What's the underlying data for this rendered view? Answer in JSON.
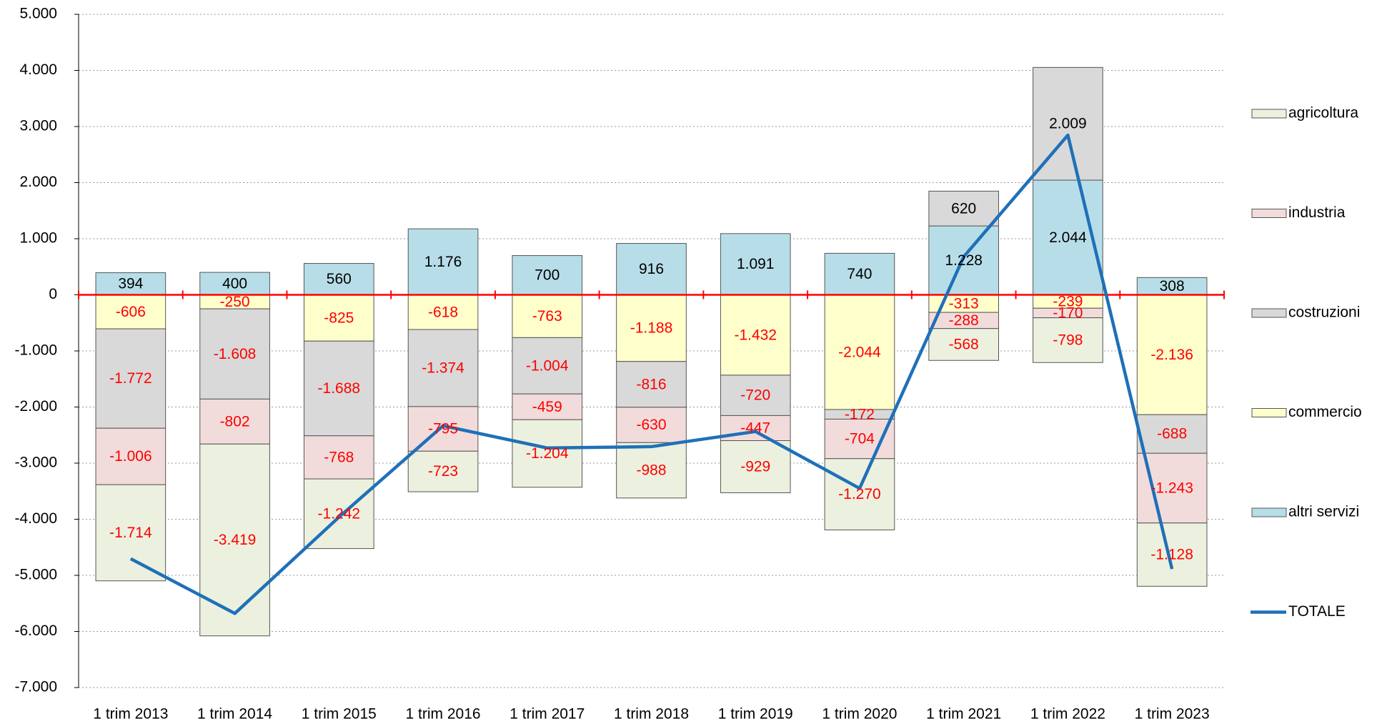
{
  "chart_data": {
    "type": "stacked_bar_line",
    "categories": [
      "1 trim 2013",
      "1 trim 2014",
      "1 trim 2015",
      "1 trim 2016",
      "1 trim 2017",
      "1 trim 2018",
      "1 trim 2019",
      "1 trim 2020",
      "1 trim 2021",
      "1 trim 2022",
      "1 trim 2023"
    ],
    "series": [
      {
        "name": "agricoltura",
        "color": "#ebf1de",
        "values": [
          -1714,
          -3419,
          -1242,
          -723,
          -1204,
          -988,
          -929,
          -1270,
          -568,
          -798,
          -1128
        ],
        "value_labels": [
          "-1.714",
          "-3.419",
          "-1.242",
          "-723",
          "-1.204",
          "-988",
          "-929",
          "-1.270",
          "-568",
          "-798",
          "-1.128"
        ]
      },
      {
        "name": "industria",
        "color": "#f2dcdb",
        "values": [
          -1006,
          -802,
          -768,
          -795,
          -459,
          -630,
          -447,
          -704,
          -288,
          -170,
          -1243
        ],
        "value_labels": [
          "-1.006",
          "-802",
          "-768",
          "-795",
          "-459",
          "-630",
          "-447",
          "-704",
          "-288",
          "-170",
          "-1.243"
        ]
      },
      {
        "name": "costruzioni",
        "color": "#d9d9d9",
        "values": [
          -1772,
          -1608,
          -1688,
          -1374,
          -1004,
          -816,
          -720,
          -172,
          620,
          2009,
          -688
        ],
        "value_labels": [
          "-1.772",
          "-1.608",
          "-1.688",
          "-1.374",
          "-1.004",
          "-816",
          "-720",
          "-172",
          "620",
          "2.009",
          "-688"
        ]
      },
      {
        "name": "commercio",
        "color": "#ffffcc",
        "values": [
          -606,
          -250,
          -825,
          -618,
          -763,
          -1188,
          -1432,
          -2044,
          -313,
          -239,
          -2136
        ],
        "value_labels": [
          "-606",
          "-250",
          "-825",
          "-618",
          "-763",
          "-1.188",
          "-1.432",
          "-2.044",
          "-313",
          "-239",
          "-2.136"
        ]
      },
      {
        "name": "altri servizi",
        "color": "#b7dee8",
        "values": [
          394,
          400,
          560,
          1176,
          700,
          916,
          1091,
          740,
          1228,
          2044,
          308
        ],
        "value_labels": [
          "394",
          "400",
          "560",
          "1.176",
          "700",
          "916",
          "1.091",
          "740",
          "1.228",
          "2.044",
          "308"
        ]
      },
      {
        "name": "TOTALE",
        "type": "line",
        "color": "#1f70b8",
        "values": [
          -4704,
          -5679,
          -3963,
          -2334,
          -2730,
          -2706,
          -2437,
          -3450,
          679,
          2846,
          -4887
        ]
      }
    ],
    "ylim": [
      -7000,
      5000
    ],
    "yticks": [
      {
        "value": -7000,
        "label": "-7.000"
      },
      {
        "value": -6000,
        "label": "-6.000"
      },
      {
        "value": -5000,
        "label": "-5.000"
      },
      {
        "value": -4000,
        "label": "-4.000"
      },
      {
        "value": -3000,
        "label": "-3.000"
      },
      {
        "value": -2000,
        "label": "-2.000"
      },
      {
        "value": -1000,
        "label": "-1.000"
      },
      0,
      {
        "value": 1000,
        "label": "1.000"
      },
      {
        "value": 2000,
        "label": "2.000"
      },
      {
        "value": 3000,
        "label": "3.000"
      },
      {
        "value": 4000,
        "label": "4.000"
      },
      {
        "value": 5000,
        "label": "5.000"
      }
    ],
    "grid": true,
    "legend": "right"
  }
}
